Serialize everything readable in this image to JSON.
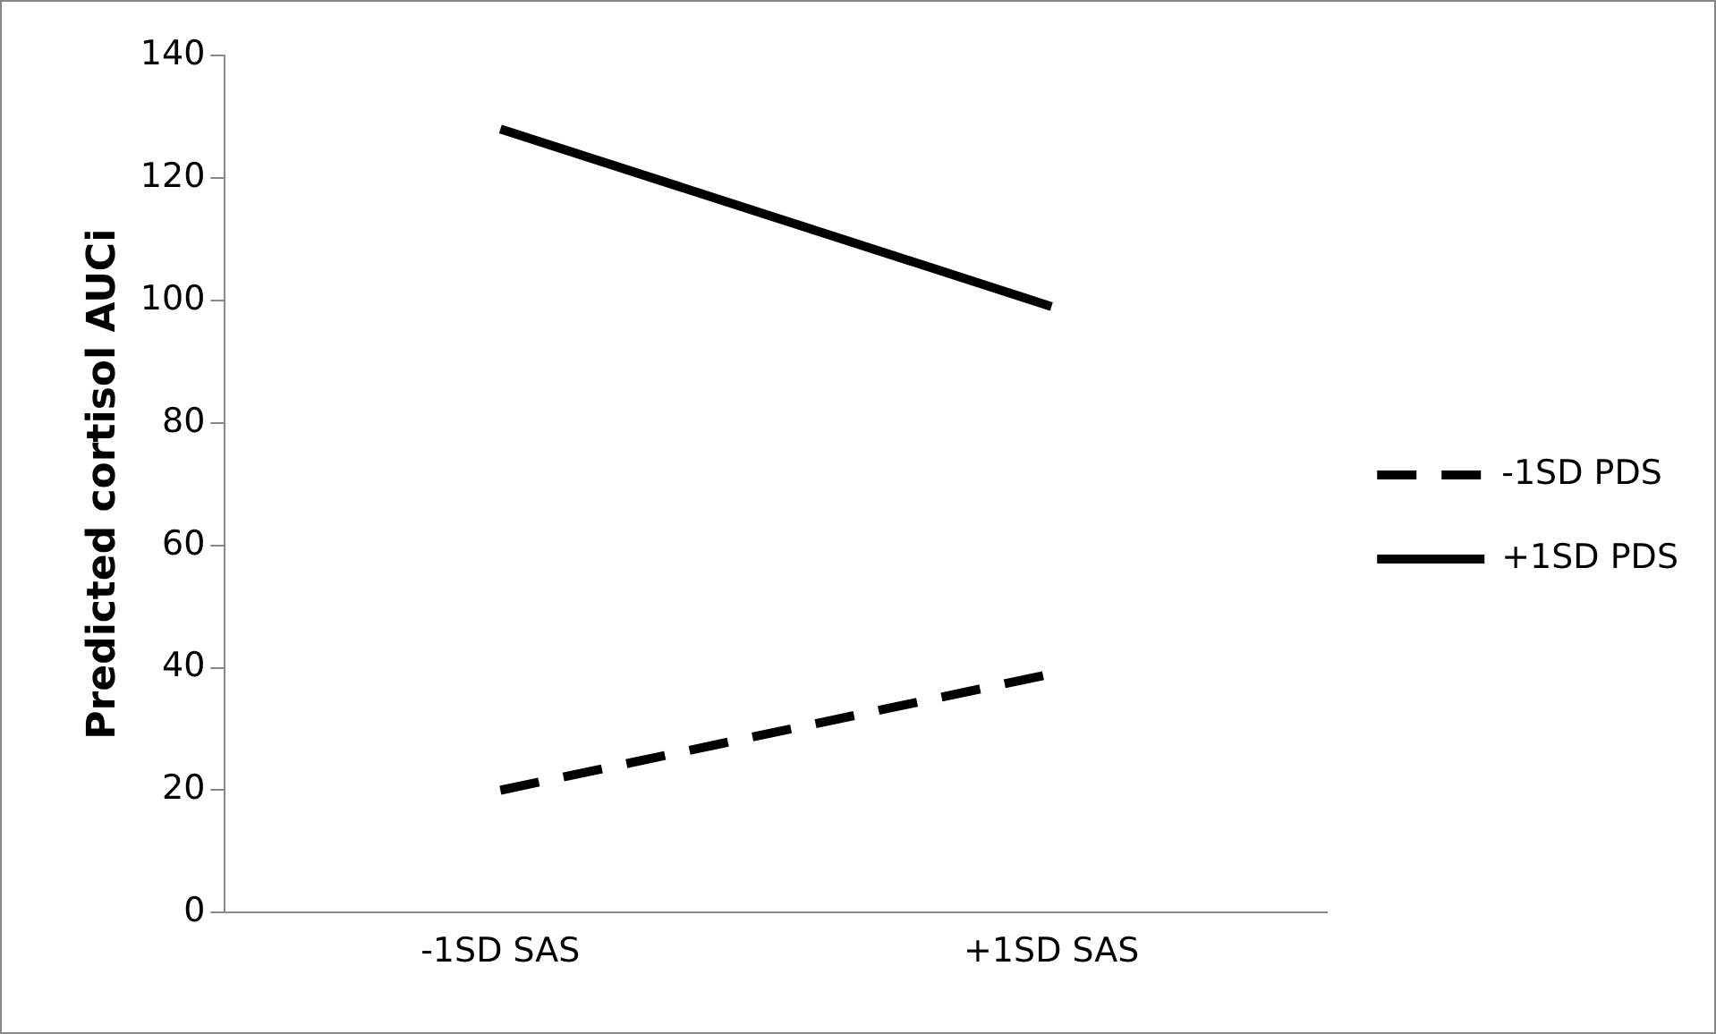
{
  "chart_data": {
    "type": "line",
    "ylabel": "Predicted cortisol AUCi",
    "categories": [
      "-1SD SAS",
      "+1SD SAS"
    ],
    "series": [
      {
        "name": "-1SD PDS",
        "color": "#000000",
        "values": [
          20,
          39
        ],
        "line_style": "dashed"
      },
      {
        "name": "+1SD PDS",
        "color": "#000000",
        "values": [
          128,
          99
        ],
        "line_style": "solid"
      }
    ],
    "ylim": [
      0,
      140
    ],
    "yticks": [
      0,
      20,
      40,
      60,
      80,
      100,
      120,
      140
    ],
    "grid": false,
    "legend": "right",
    "marker": "none"
  }
}
